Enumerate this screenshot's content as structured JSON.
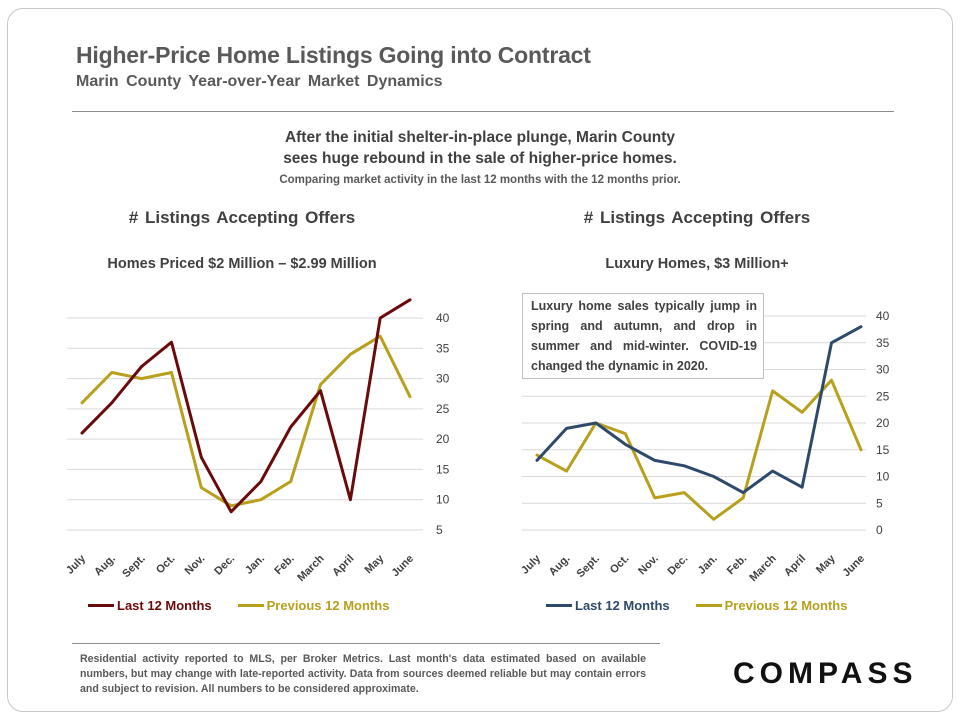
{
  "header": {
    "title": "Higher-Price Home Listings Going into Contract",
    "subtitle": "Marin County Year-over-Year Market Dynamics"
  },
  "intro": {
    "line1": "After the initial shelter-in-place plunge, Marin County",
    "line2": "sees huge rebound in the sale of higher-price homes.",
    "compare": "Comparing market activity in the last 12 months with the 12 months prior."
  },
  "annotation": "Luxury home sales typically jump in spring and autumn, and drop in summer and mid-winter. COVID-19 changed the dynamic in 2020.",
  "footnote": "Residential activity reported to MLS, per Broker Metrics. Last month's data estimated based on available numbers, but may change with late-reported activity. Data from sources deemed reliable but may contain errors and subject to revision. All numbers to be considered approximate.",
  "logo": "COMPASS",
  "chart_data": [
    {
      "type": "line",
      "title": "# Listings Accepting Offers",
      "subtitle": "Homes Priced $2 Million – $2.99 Million",
      "categories": [
        "July",
        "Aug.",
        "Sept.",
        "Oct.",
        "Nov.",
        "Dec.",
        "Jan.",
        "Feb.",
        "March",
        "April",
        "May",
        "June"
      ],
      "ylim": [
        5,
        43
      ],
      "yticks": [
        5,
        10,
        15,
        20,
        25,
        30,
        35,
        40
      ],
      "series": [
        {
          "name": "Last 12 Months",
          "color": "#6b0a0a",
          "values": [
            21,
            26,
            32,
            36,
            17,
            8,
            13,
            22,
            28,
            10,
            40,
            43
          ]
        },
        {
          "name": "Previous 12 Months",
          "color": "#b8a01c",
          "values": [
            26,
            31,
            30,
            31,
            12,
            9,
            10,
            13,
            29,
            34,
            37,
            27
          ]
        }
      ]
    },
    {
      "type": "line",
      "title": "# Listings Accepting Offers",
      "subtitle": "Luxury Homes, $3 Million+",
      "categories": [
        "July",
        "Aug.",
        "Sept.",
        "Oct.",
        "Nov.",
        "Dec.",
        "Jan.",
        "Feb.",
        "March",
        "April",
        "May",
        "June"
      ],
      "ylim": [
        0,
        40
      ],
      "yticks": [
        0,
        5,
        10,
        15,
        20,
        25,
        30,
        35,
        40
      ],
      "series": [
        {
          "name": "Last 12 Months",
          "color": "#2e4a6b",
          "values": [
            13,
            19,
            20,
            16,
            13,
            12,
            10,
            7,
            11,
            8,
            35,
            38
          ]
        },
        {
          "name": "Previous 12 Months",
          "color": "#b8a01c",
          "values": [
            14,
            11,
            20,
            18,
            6,
            7,
            2,
            6,
            26,
            22,
            28,
            15
          ]
        }
      ]
    }
  ]
}
